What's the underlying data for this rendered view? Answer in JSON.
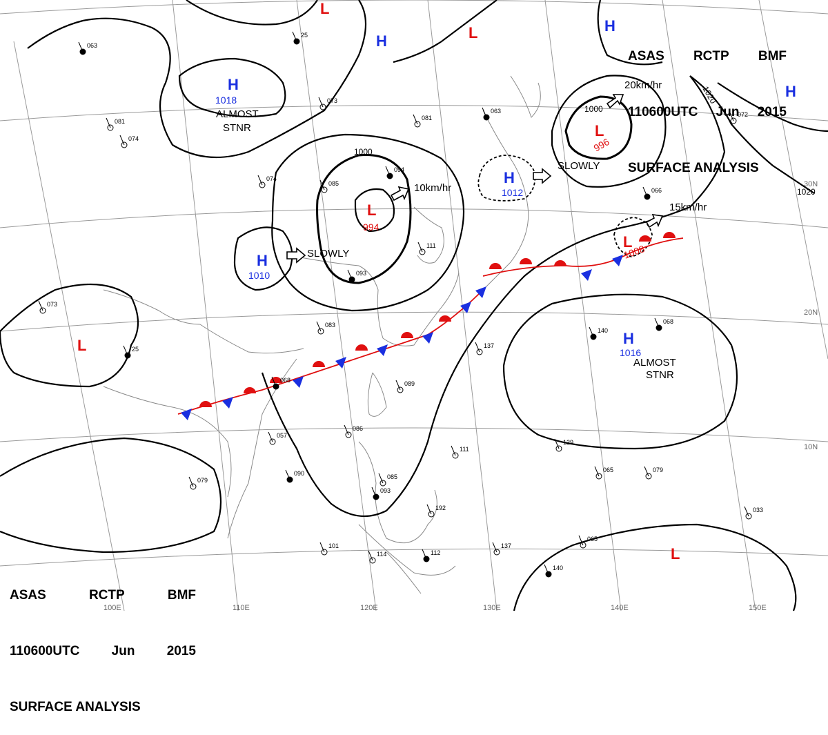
{
  "header_top": {
    "line1": [
      "ASAS",
      "RCTP",
      "BMF"
    ],
    "line2": [
      "110600UTC",
      "Jun",
      "2015"
    ],
    "line3": "SURFACE ANALYSIS"
  },
  "header_bottom": {
    "line1": [
      "ASAS",
      "RCTP",
      "BMF"
    ],
    "line2": [
      "110600UTC",
      "Jun",
      "2015"
    ],
    "line3": "SURFACE ANALYSIS"
  },
  "longitudes": [
    "100E",
    "110E",
    "120E",
    "130E",
    "140E",
    "150E"
  ],
  "latitudes": [
    "30N",
    "20N",
    "10N"
  ],
  "centers": [
    {
      "type": "H",
      "value": "1018",
      "note": [
        "ALMOST",
        "STNR"
      ]
    },
    {
      "type": "H",
      "value": "1010",
      "note": [
        "SLOWLY"
      ]
    },
    {
      "type": "L",
      "value": "994",
      "note": [
        "10km/hr"
      ]
    },
    {
      "type": "H",
      "value": "1012",
      "note": [
        "SLOWLY"
      ]
    },
    {
      "type": "L",
      "value": "996",
      "note": [
        "20km/hr"
      ]
    },
    {
      "type": "L",
      "value": "1008",
      "note": [
        "15km/hr"
      ]
    },
    {
      "type": "H",
      "value": "1016",
      "note": [
        "ALMOST",
        "STNR"
      ]
    },
    {
      "type": "H",
      "value": "",
      "note": []
    },
    {
      "type": "H",
      "value": "",
      "note": []
    },
    {
      "type": "H",
      "value": "",
      "note": []
    },
    {
      "type": "L",
      "value": "",
      "note": []
    },
    {
      "type": "L",
      "value": "",
      "note": []
    },
    {
      "type": "L",
      "value": "",
      "note": []
    },
    {
      "type": "L",
      "value": "",
      "note": []
    }
  ],
  "isobar_labels": [
    "1000",
    "1000",
    "1020",
    "1020"
  ],
  "fronts": [
    {
      "type": "stationary",
      "region": "south-china-to-taiwan-to-ryukyu"
    },
    {
      "type": "stationary",
      "region": "south-of-japan"
    }
  ],
  "station_samples": [
    "25",
    "073",
    "081",
    "063",
    "074",
    "085",
    "093",
    "111",
    "137",
    "140",
    "065",
    "079",
    "068",
    "057",
    "083",
    "094",
    "089",
    "086",
    "090",
    "101",
    "114",
    "112",
    "129",
    "192",
    "066",
    "072",
    "033"
  ],
  "colors": {
    "high": "#1a2fe0",
    "low": "#e01010",
    "isobar": "#000000",
    "grid": "#8a8a8a",
    "coast": "#8a8a8a"
  }
}
